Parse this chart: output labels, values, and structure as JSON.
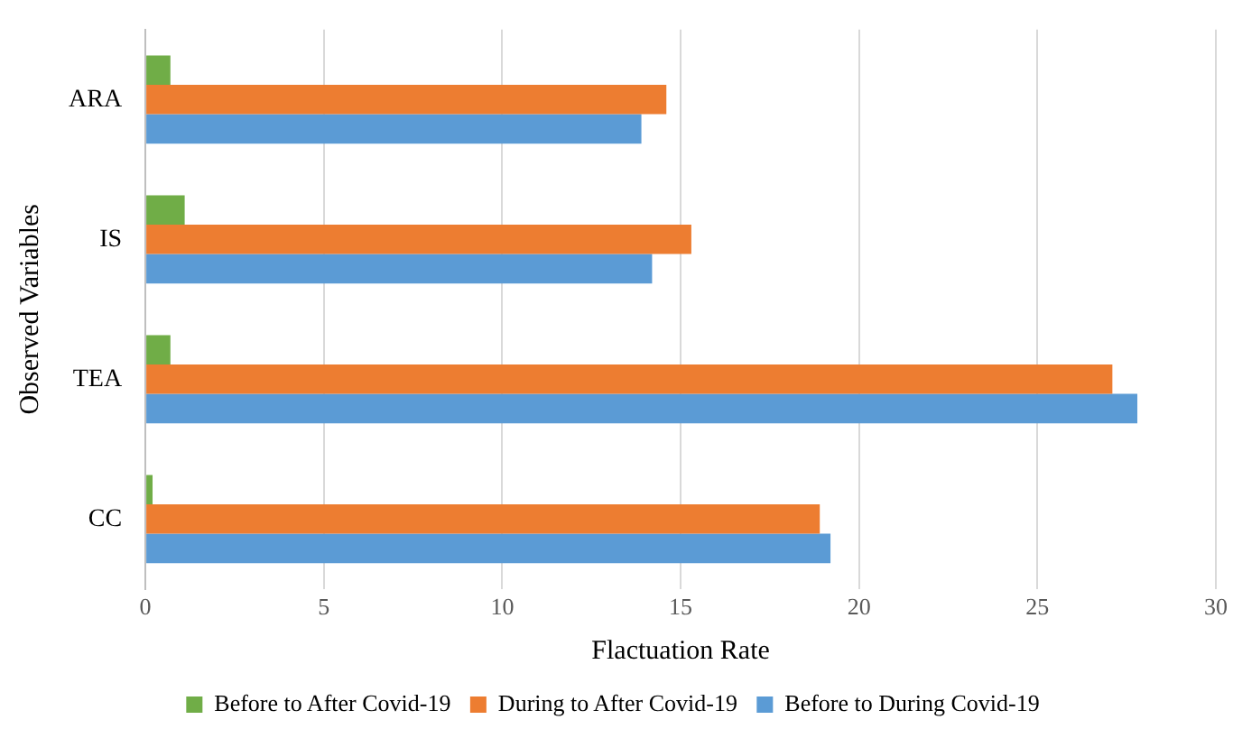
{
  "chart_data": {
    "type": "bar",
    "orientation": "horizontal",
    "xlabel": "Flactuation Rate",
    "ylabel": "Observed Variables",
    "categories": [
      "ARA",
      "IS",
      "TEA",
      "CC"
    ],
    "series": [
      {
        "name": "Before to After Covid-19",
        "color": "#70ad47",
        "values": [
          0.7,
          1.1,
          0.7,
          0.2
        ]
      },
      {
        "name": "During to After Covid-19",
        "color": "#ed7d31",
        "values": [
          14.6,
          15.3,
          27.1,
          18.9
        ]
      },
      {
        "name": "Before to During Covid-19",
        "color": "#5b9bd5",
        "values": [
          13.9,
          14.2,
          27.8,
          19.2
        ]
      }
    ],
    "xlim": [
      0,
      30
    ],
    "xticks": [
      0,
      5,
      10,
      15,
      20,
      25,
      30
    ],
    "grid": "x",
    "legend": "bottom"
  }
}
